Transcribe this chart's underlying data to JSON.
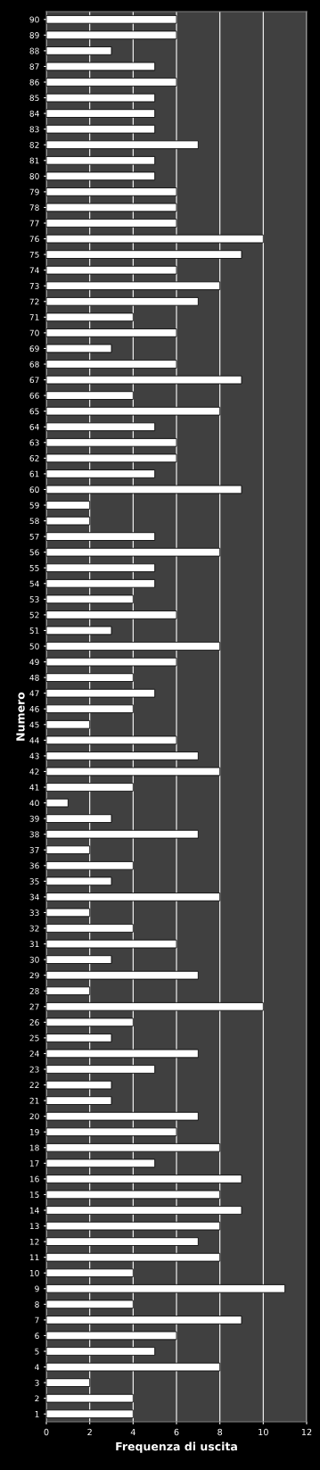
{
  "chart_data": {
    "type": "bar",
    "orientation": "horizontal",
    "xlabel": "Frequenza di uscita",
    "ylabel": "Numero",
    "categories": [
      "90",
      "89",
      "88",
      "87",
      "86",
      "85",
      "84",
      "83",
      "82",
      "81",
      "80",
      "79",
      "78",
      "77",
      "76",
      "75",
      "74",
      "73",
      "72",
      "71",
      "70",
      "69",
      "68",
      "67",
      "66",
      "65",
      "64",
      "63",
      "62",
      "61",
      "60",
      "59",
      "58",
      "57",
      "56",
      "55",
      "54",
      "53",
      "52",
      "51",
      "50",
      "49",
      "48",
      "47",
      "46",
      "45",
      "44",
      "43",
      "42",
      "41",
      "40",
      "39",
      "38",
      "37",
      "36",
      "35",
      "34",
      "33",
      "32",
      "31",
      "30",
      "29",
      "28",
      "27",
      "26",
      "25",
      "24",
      "23",
      "22",
      "21",
      "20",
      "19",
      "18",
      "17",
      "16",
      "15",
      "14",
      "13",
      "12",
      "11",
      "10",
      "9",
      "8",
      "7",
      "6",
      "5",
      "4",
      "3",
      "2",
      "1"
    ],
    "values": [
      6,
      6,
      3,
      5,
      6,
      5,
      5,
      5,
      7,
      5,
      5,
      6,
      6,
      6,
      10,
      9,
      6,
      8,
      7,
      4,
      6,
      3,
      6,
      9,
      4,
      8,
      5,
      6,
      6,
      5,
      9,
      2,
      2,
      5,
      8,
      5,
      5,
      4,
      6,
      3,
      8,
      6,
      4,
      5,
      4,
      2,
      6,
      7,
      8,
      4,
      1,
      3,
      7,
      2,
      4,
      3,
      8,
      2,
      4,
      6,
      3,
      7,
      2,
      10,
      4,
      3,
      7,
      5,
      3,
      3,
      7,
      6,
      8,
      5,
      9,
      8,
      9,
      8,
      7,
      8,
      4,
      11,
      4,
      9,
      6,
      5,
      8,
      2,
      4,
      4
    ],
    "color": "#ffffff",
    "xlim": [
      0,
      12
    ],
    "xticks": [
      0,
      2,
      4,
      6,
      8,
      10,
      12
    ],
    "grid": "x"
  }
}
